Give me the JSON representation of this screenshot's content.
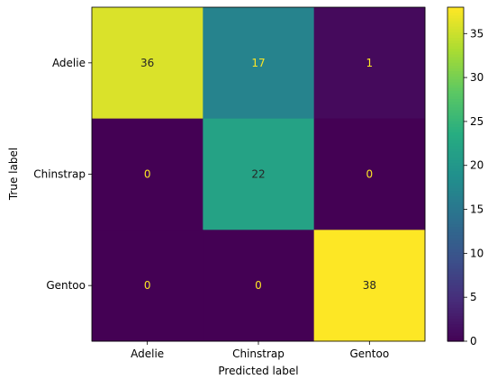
{
  "chart_data": {
    "type": "heatmap",
    "title": "",
    "xlabel": "Predicted label",
    "ylabel": "True label",
    "x_categories": [
      "Adelie",
      "Chinstrap",
      "Gentoo"
    ],
    "y_categories": [
      "Adelie",
      "Chinstrap",
      "Gentoo"
    ],
    "values": [
      [
        36,
        17,
        1
      ],
      [
        0,
        22,
        0
      ],
      [
        0,
        0,
        38
      ]
    ],
    "colormap": "viridis",
    "vmin": 0,
    "vmax": 38,
    "colorbar": {
      "ticks": [
        0,
        5,
        10,
        15,
        20,
        25,
        30,
        35
      ]
    },
    "grid": false
  }
}
